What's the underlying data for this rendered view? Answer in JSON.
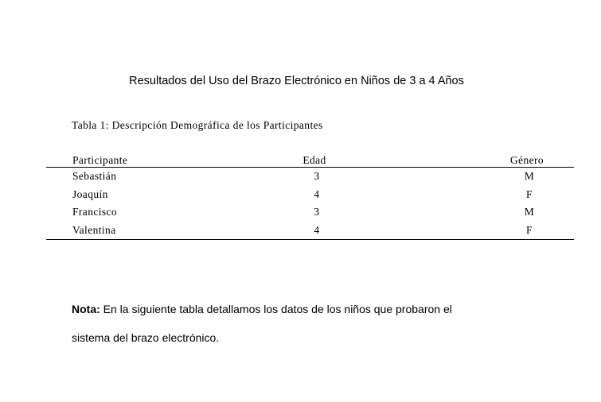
{
  "document": {
    "title": "Resultados del Uso del Brazo Electrónico en Niños de 3 a 4 Años",
    "table_caption": "Tabla 1: Descripción Demográfica de los Participantes",
    "table": {
      "headers": [
        "Participante",
        "Edad",
        "Género"
      ],
      "rows": [
        [
          "Sebastián",
          "3",
          "M"
        ],
        [
          "Joaquín",
          "4",
          "F"
        ],
        [
          "Francisco",
          "3",
          "M"
        ],
        [
          "Valentina",
          "4",
          "F"
        ]
      ]
    },
    "note": {
      "label": "Nota:",
      "line1": "En la siguiente tabla detallamos los datos de los niños que probaron el",
      "line2": "sistema del brazo electrónico."
    }
  }
}
